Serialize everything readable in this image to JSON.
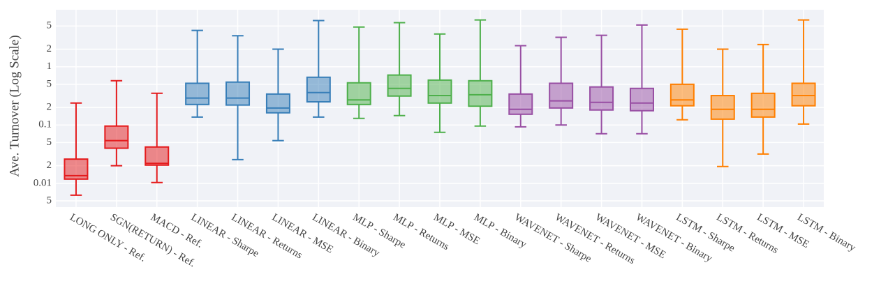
{
  "chart_data": {
    "type": "box",
    "y_label": "Ave. Turnover (Log Scale)",
    "log_scale": true,
    "grid": true,
    "categories": [
      "LONG ONLY - Ref.",
      "SGN(RETURN) - Ref.",
      "MACD - Ref.",
      "LINEAR - Sharpe",
      "LINEAR - Returns",
      "LINEAR - MSE",
      "LINEAR - Binary",
      "MLP - Sharpe",
      "MLP - Returns",
      "MLP - MSE",
      "MLP - Binary",
      "WAVENET - Sharpe",
      "WAVENET - Returns",
      "WAVENET - MSE",
      "WAVENET - Binary",
      "LSTM - Sharpe",
      "LSTM - Returns",
      "LSTM - MSE",
      "LSTM - Binary"
    ],
    "colors": [
      "#e41a1c",
      "#e41a1c",
      "#e41a1c",
      "#377eb8",
      "#377eb8",
      "#377eb8",
      "#377eb8",
      "#4daf4a",
      "#4daf4a",
      "#4daf4a",
      "#4daf4a",
      "#984ea3",
      "#984ea3",
      "#984ea3",
      "#984ea3",
      "#ff7f00",
      "#ff7f00",
      "#ff7f00",
      "#ff7f00"
    ],
    "min": [
      0.00625,
      0.02,
      0.0103,
      0.137,
      0.0255,
      0.054,
      0.137,
      0.13,
      0.145,
      0.075,
      0.096,
      0.093,
      0.1,
      0.071,
      0.071,
      0.123,
      0.0194,
      0.0318,
      0.104
    ],
    "q1": [
      0.0118,
      0.04,
      0.0205,
      0.225,
      0.22,
      0.162,
      0.25,
      0.225,
      0.314,
      0.238,
      0.21,
      0.153,
      0.196,
      0.181,
      0.176,
      0.214,
      0.126,
      0.137,
      0.214
    ],
    "median": [
      0.0135,
      0.054,
      0.022,
      0.29,
      0.29,
      0.196,
      0.36,
      0.27,
      0.425,
      0.32,
      0.33,
      0.186,
      0.26,
      0.245,
      0.238,
      0.27,
      0.186,
      0.186,
      0.32
    ],
    "q3": [
      0.026,
      0.096,
      0.042,
      0.52,
      0.545,
      0.34,
      0.66,
      0.53,
      0.72,
      0.59,
      0.575,
      0.34,
      0.52,
      0.45,
      0.425,
      0.5,
      0.32,
      0.35,
      0.52
    ],
    "max": [
      0.238,
      0.575,
      0.35,
      4.2,
      3.4,
      2.0,
      6.2,
      4.8,
      5.7,
      3.65,
      6.35,
      2.3,
      3.2,
      3.46,
      5.2,
      4.4,
      2.0,
      2.4,
      6.35
    ],
    "ylim": [
      0.0039,
      9.5
    ],
    "yticks": [
      {
        "value": 0.005,
        "label": "5"
      },
      0.01,
      {
        "value": 0.02,
        "label": "2"
      },
      {
        "value": 0.05,
        "label": "5"
      },
      0.1,
      {
        "value": 0.2,
        "label": "2"
      },
      {
        "value": 0.5,
        "label": "5"
      },
      1,
      {
        "value": 2,
        "label": "2"
      },
      {
        "value": 5,
        "label": "5"
      }
    ]
  }
}
